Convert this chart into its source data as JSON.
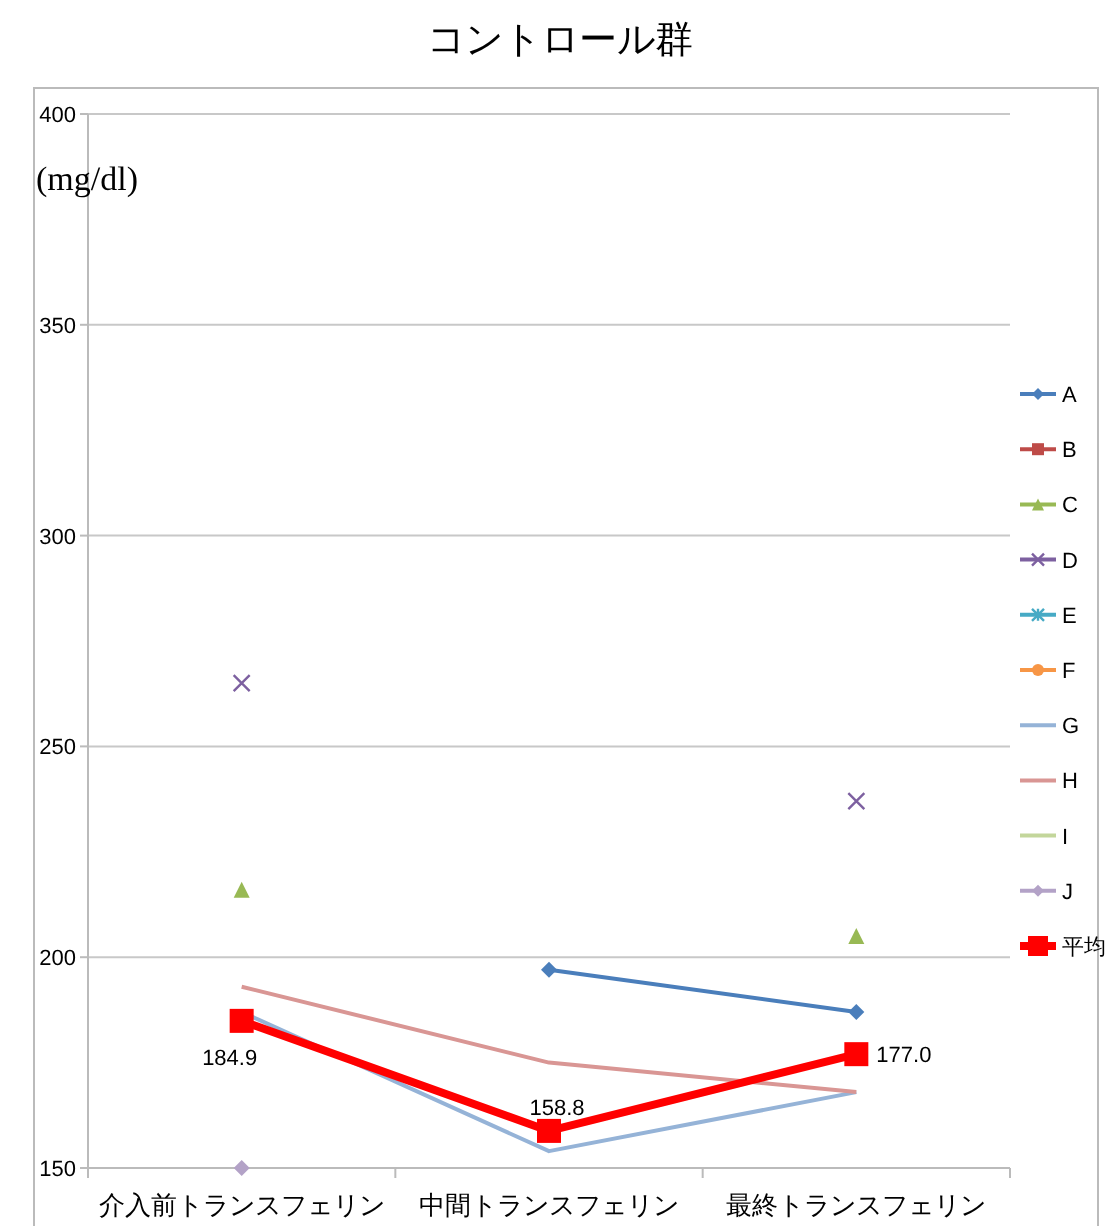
{
  "chart_data": {
    "type": "line",
    "title": "コントロール群",
    "ylabel": "(mg/dl)",
    "categories": [
      "介入前トランスフェリン",
      "中間トランスフェリン",
      "最終トランスフェリン"
    ],
    "ylim": [
      150,
      400
    ],
    "yticks": [
      150,
      200,
      250,
      300,
      350,
      400
    ],
    "grid": "y",
    "legend": "right",
    "series": [
      {
        "name": "A",
        "color": "#4a7ebb",
        "marker": "diamond",
        "values": [
          null,
          197,
          187
        ]
      },
      {
        "name": "B",
        "color": "#be4b48",
        "marker": "square",
        "values": [
          null,
          null,
          null
        ]
      },
      {
        "name": "C",
        "type": "scatter",
        "color": "#98b954",
        "marker": "triangle",
        "values": [
          216,
          null,
          205
        ]
      },
      {
        "name": "D",
        "type": "scatter",
        "color": "#7d60a0",
        "marker": "cross",
        "values": [
          265,
          null,
          237
        ]
      },
      {
        "name": "E",
        "color": "#46aac5",
        "marker": "star",
        "values": [
          null,
          null,
          null
        ]
      },
      {
        "name": "F",
        "color": "#f79646",
        "marker": "circle",
        "values": [
          null,
          null,
          null
        ]
      },
      {
        "name": "G",
        "color": "#95b3d7",
        "marker": "none",
        "values": [
          187,
          154,
          168
        ]
      },
      {
        "name": "H",
        "color": "#d99694",
        "marker": "none",
        "values": [
          193,
          175,
          168
        ]
      },
      {
        "name": "I",
        "color": "#c3d69b",
        "marker": "none",
        "values": [
          null,
          null,
          null
        ]
      },
      {
        "name": "J",
        "type": "scatter",
        "color": "#b3a2c7",
        "marker": "diamond",
        "values": [
          150,
          null,
          null
        ]
      },
      {
        "name": "平均",
        "color": "#ff0000",
        "marker": "square",
        "values": [
          184.9,
          158.8,
          177.0
        ],
        "value_labels": [
          "184.9",
          "158.8",
          "177.0"
        ]
      }
    ]
  }
}
